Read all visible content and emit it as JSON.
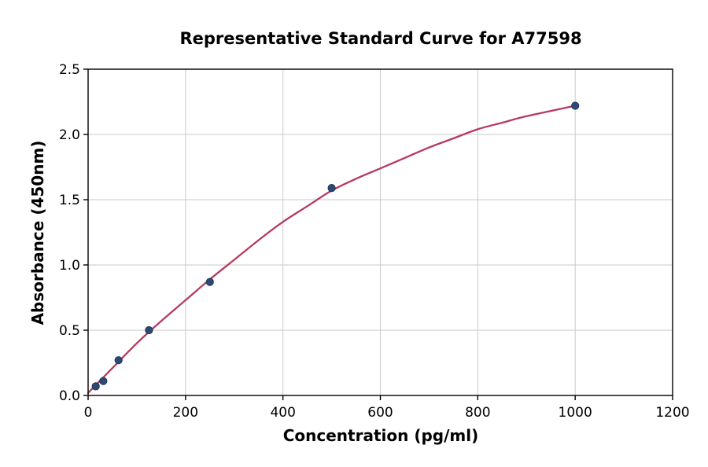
{
  "figure": {
    "background": "#ffffff"
  },
  "chart_data": {
    "type": "scatter",
    "title": "Representative Standard Curve for A77598",
    "xlabel": "Concentration (pg/ml)",
    "ylabel": "Absorbance (450nm)",
    "xlim": [
      0,
      1200
    ],
    "ylim": [
      0,
      2.5
    ],
    "xticks": [
      {
        "v": 0,
        "label": "0"
      },
      {
        "v": 200,
        "label": "200"
      },
      {
        "v": 400,
        "label": "400"
      },
      {
        "v": 600,
        "label": "600"
      },
      {
        "v": 800,
        "label": "800"
      },
      {
        "v": 1000,
        "label": "1000"
      },
      {
        "v": 1200,
        "label": "1200"
      }
    ],
    "yticks": [
      {
        "v": 0.0,
        "label": "0.0"
      },
      {
        "v": 0.5,
        "label": "0.5"
      },
      {
        "v": 1.0,
        "label": "1.0"
      },
      {
        "v": 1.5,
        "label": "1.5"
      },
      {
        "v": 2.0,
        "label": "2.0"
      },
      {
        "v": 2.5,
        "label": "2.5"
      }
    ],
    "grid": true,
    "legend": "none",
    "series": [
      {
        "name": "standard-points",
        "type": "scatter",
        "points": [
          [
            15.6,
            0.07
          ],
          [
            31.2,
            0.11
          ],
          [
            62.5,
            0.27
          ],
          [
            125,
            0.5
          ],
          [
            250,
            0.87
          ],
          [
            500,
            1.59
          ],
          [
            1000,
            2.22
          ]
        ]
      },
      {
        "name": "fit-curve",
        "type": "line",
        "points": [
          [
            0,
            0.02
          ],
          [
            50,
            0.21
          ],
          [
            100,
            0.4
          ],
          [
            150,
            0.57
          ],
          [
            200,
            0.73
          ],
          [
            250,
            0.89
          ],
          [
            300,
            1.04
          ],
          [
            350,
            1.19
          ],
          [
            400,
            1.33
          ],
          [
            450,
            1.45
          ],
          [
            500,
            1.57
          ],
          [
            550,
            1.66
          ],
          [
            600,
            1.74
          ],
          [
            650,
            1.82
          ],
          [
            700,
            1.9
          ],
          [
            750,
            1.97
          ],
          [
            800,
            2.04
          ],
          [
            850,
            2.09
          ],
          [
            900,
            2.14
          ],
          [
            950,
            2.18
          ],
          [
            1000,
            2.22
          ]
        ]
      }
    ],
    "colors": {
      "point_fill": "#2e4a72",
      "point_edge": "#1c355a",
      "line": "#b73a5e",
      "grid": "#c9c9c9",
      "axis": "#000000",
      "background": "#ffffff"
    }
  }
}
